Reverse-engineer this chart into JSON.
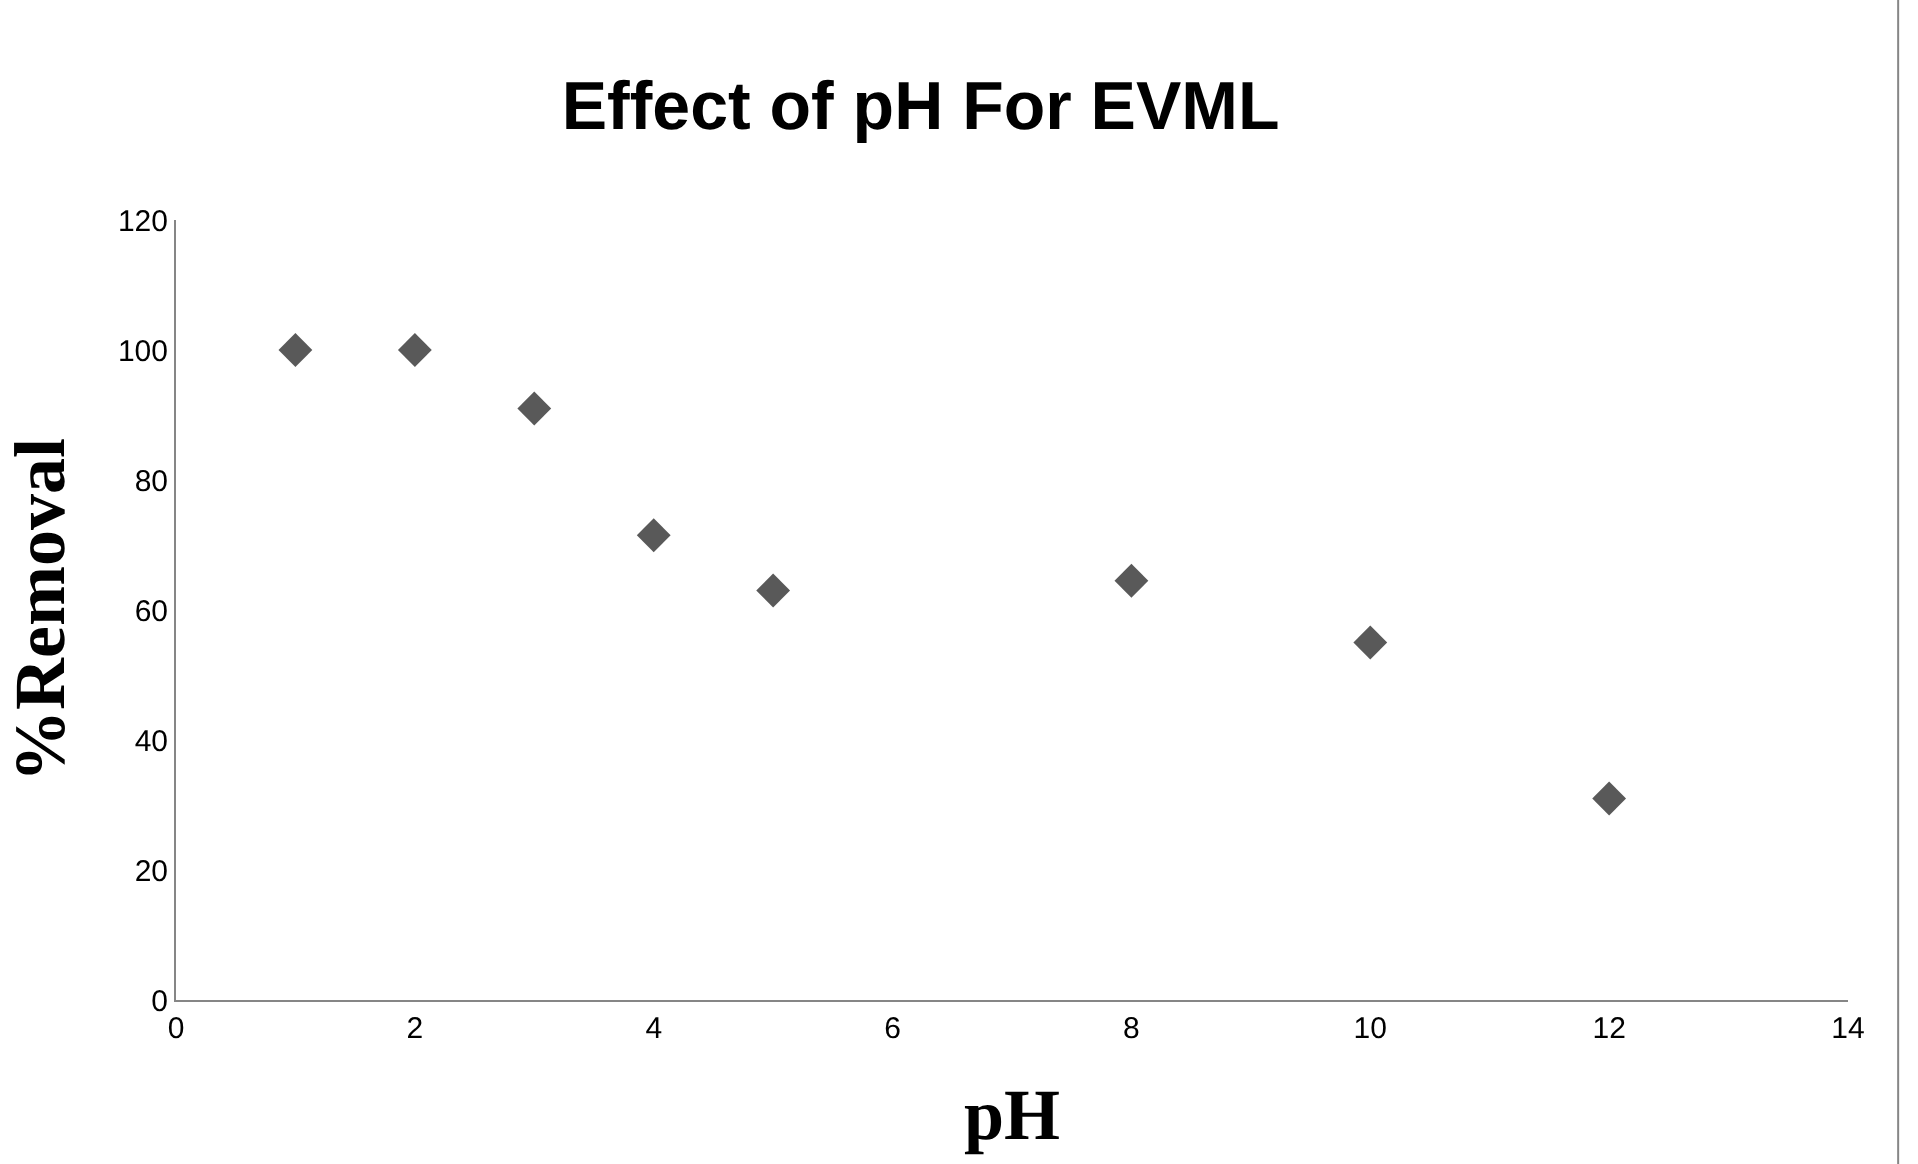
{
  "chart_data": {
    "type": "scatter",
    "title": "Effect of pH For EVML",
    "xlabel": "pH",
    "ylabel": "%Removal",
    "x": [
      1,
      2,
      3,
      4,
      5,
      8,
      10,
      12
    ],
    "values": [
      100,
      100,
      91,
      71.5,
      63,
      64.5,
      55,
      31
    ],
    "color": "#595959",
    "marker": "diamond",
    "xlim": [
      0,
      14
    ],
    "xticks": [
      0,
      2,
      4,
      6,
      8,
      10,
      12,
      14
    ],
    "ylim": [
      0,
      120
    ],
    "yticks": [
      0,
      20,
      40,
      60,
      80,
      100,
      120
    ]
  }
}
